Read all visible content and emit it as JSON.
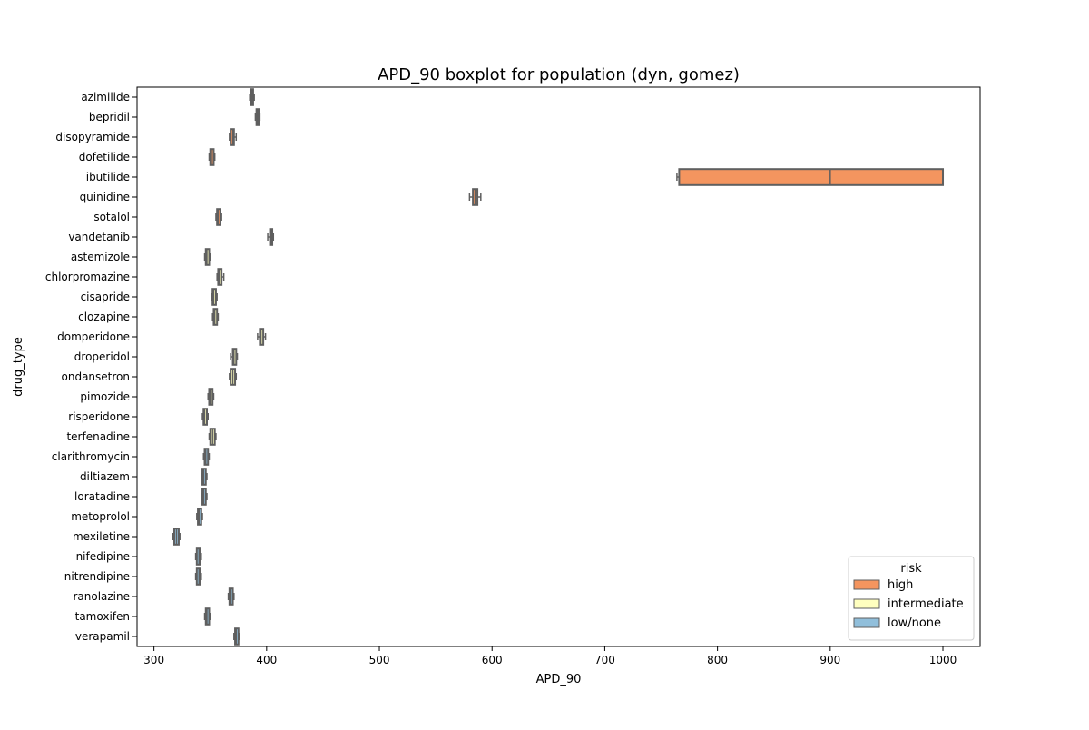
{
  "chart_data": {
    "type": "boxplot",
    "orientation": "horizontal",
    "title": "APD_90 boxplot for population (dyn, gomez)",
    "xlabel": "APD_90",
    "ylabel": "drug_type",
    "xlim": [
      285,
      1033
    ],
    "xticks": [
      300,
      400,
      500,
      600,
      700,
      800,
      900,
      1000
    ],
    "grid": false,
    "legend": {
      "title": "risk",
      "position": "lower-right",
      "entries": [
        {
          "label": "high",
          "color": "#f4955f"
        },
        {
          "label": "intermediate",
          "color": "#ffffbf"
        },
        {
          "label": "low/none",
          "color": "#91bfdb"
        }
      ]
    },
    "box_edge_color": "#5f5f5f",
    "categories": [
      "azimilide",
      "bepridil",
      "disopyramide",
      "dofetilide",
      "ibutilide",
      "quinidine",
      "sotalol",
      "vandetanib",
      "astemizole",
      "chlorpromazine",
      "cisapride",
      "clozapine",
      "domperidone",
      "droperidol",
      "ondansetron",
      "pimozide",
      "risperidone",
      "terfenadine",
      "clarithromycin",
      "diltiazem",
      "loratadine",
      "metoprolol",
      "mexiletine",
      "nifedipine",
      "nitrendipine",
      "ranolazine",
      "tamoxifen",
      "verapamil"
    ],
    "series": [
      {
        "name": "high",
        "color": "#f4955f",
        "boxes": [
          {
            "category": "azimilide",
            "whislo": 385,
            "q1": 386,
            "med": 387,
            "q3": 388,
            "whishi": 389
          },
          {
            "category": "bepridil",
            "whislo": 390,
            "q1": 391,
            "med": 392,
            "q3": 393,
            "whishi": 394
          },
          {
            "category": "disopyramide",
            "whislo": 367,
            "q1": 368,
            "med": 370,
            "q3": 371,
            "whishi": 373
          },
          {
            "category": "dofetilide",
            "whislo": 349,
            "q1": 350,
            "med": 351,
            "q3": 353,
            "whishi": 354
          },
          {
            "category": "ibutilide",
            "whislo": 764,
            "q1": 766,
            "med": 900,
            "q3": 1000,
            "whishi": 1000
          },
          {
            "category": "quinidine",
            "whislo": 580,
            "q1": 583,
            "med": 585,
            "q3": 587,
            "whishi": 590
          },
          {
            "category": "sotalol",
            "whislo": 355,
            "q1": 356,
            "med": 357,
            "q3": 359,
            "whishi": 360
          },
          {
            "category": "vandetanib",
            "whislo": 401,
            "q1": 403,
            "med": 404,
            "q3": 405,
            "whishi": 406
          }
        ]
      },
      {
        "name": "intermediate",
        "color": "#ffffbf",
        "boxes": [
          {
            "category": "astemizole",
            "whislo": 345,
            "q1": 346,
            "med": 347,
            "q3": 349,
            "whishi": 350
          },
          {
            "category": "chlorpromazine",
            "whislo": 356,
            "q1": 357,
            "med": 358,
            "q3": 360,
            "whishi": 362
          },
          {
            "category": "cisapride",
            "whislo": 351,
            "q1": 352,
            "med": 353,
            "q3": 355,
            "whishi": 356
          },
          {
            "category": "clozapine",
            "whislo": 352,
            "q1": 353,
            "med": 354,
            "q3": 356,
            "whishi": 357
          },
          {
            "category": "domperidone",
            "whislo": 392,
            "q1": 394,
            "med": 395,
            "q3": 397,
            "whishi": 399
          },
          {
            "category": "droperidol",
            "whislo": 368,
            "q1": 370,
            "med": 371,
            "q3": 373,
            "whishi": 374
          },
          {
            "category": "ondansetron",
            "whislo": 367,
            "q1": 368,
            "med": 370,
            "q3": 372,
            "whishi": 373
          },
          {
            "category": "pimozide",
            "whislo": 348,
            "q1": 349,
            "med": 350,
            "q3": 352,
            "whishi": 353
          },
          {
            "category": "risperidone",
            "whislo": 343,
            "q1": 344,
            "med": 345,
            "q3": 347,
            "whishi": 348
          },
          {
            "category": "terfenadine",
            "whislo": 349,
            "q1": 350,
            "med": 352,
            "q3": 354,
            "whishi": 355
          }
        ]
      },
      {
        "name": "low/none",
        "color": "#91bfdb",
        "boxes": [
          {
            "category": "clarithromycin",
            "whislo": 344,
            "q1": 345,
            "med": 346,
            "q3": 348,
            "whishi": 349
          },
          {
            "category": "diltiazem",
            "whislo": 342,
            "q1": 343,
            "med": 344,
            "q3": 346,
            "whishi": 347
          },
          {
            "category": "loratadine",
            "whislo": 342,
            "q1": 343,
            "med": 344,
            "q3": 346,
            "whishi": 347
          },
          {
            "category": "metoprolol",
            "whislo": 338,
            "q1": 339,
            "med": 340,
            "q3": 342,
            "whishi": 343
          },
          {
            "category": "mexiletine",
            "whislo": 317,
            "q1": 318,
            "med": 320,
            "q3": 322,
            "whishi": 323
          },
          {
            "category": "nifedipine",
            "whislo": 337,
            "q1": 338,
            "med": 340,
            "q3": 341,
            "whishi": 342
          },
          {
            "category": "nitrendipine",
            "whislo": 337,
            "q1": 338,
            "med": 340,
            "q3": 341,
            "whishi": 342
          },
          {
            "category": "ranolazine",
            "whislo": 366,
            "q1": 367,
            "med": 368,
            "q3": 370,
            "whishi": 371
          },
          {
            "category": "tamoxifen",
            "whislo": 345,
            "q1": 346,
            "med": 347,
            "q3": 349,
            "whishi": 350
          },
          {
            "category": "verapamil",
            "whislo": 371,
            "q1": 372,
            "med": 373,
            "q3": 375,
            "whishi": 376
          }
        ]
      }
    ]
  }
}
